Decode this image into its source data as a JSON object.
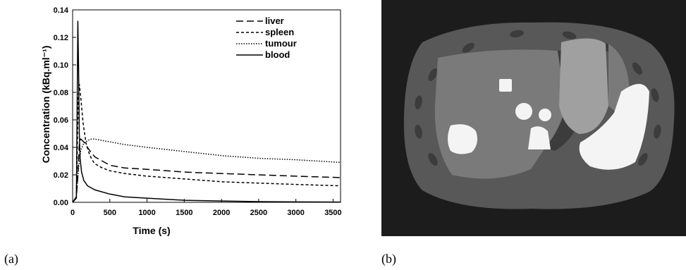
{
  "panel_labels": {
    "a": "(a)",
    "b": "(b)"
  },
  "chart_data": {
    "type": "line",
    "xlabel": "Time (s)",
    "ylabel": "Concentration (kBq.ml⁻¹)",
    "xlim": [
      0,
      3600
    ],
    "ylim": [
      0,
      0.14
    ],
    "xticks": [
      0,
      500,
      1000,
      1500,
      2000,
      2500,
      3000,
      3500
    ],
    "yticks": [
      "0.00",
      "0.02",
      "0.04",
      "0.06",
      "0.08",
      "0.10",
      "0.12",
      "0.14"
    ],
    "legend_position": "top-right",
    "series": [
      {
        "name": "liver",
        "dash": "long-dash",
        "x": [
          0,
          50,
          70,
          90,
          110,
          150,
          200,
          250,
          300,
          400,
          500,
          700,
          1000,
          1500,
          2000,
          2500,
          3000,
          3600
        ],
        "y": [
          0,
          0.004,
          0.02,
          0.042,
          0.046,
          0.044,
          0.04,
          0.036,
          0.033,
          0.03,
          0.027,
          0.025,
          0.024,
          0.022,
          0.021,
          0.02,
          0.019,
          0.018
        ]
      },
      {
        "name": "spleen",
        "dash": "short-dash",
        "x": [
          0,
          50,
          60,
          75,
          90,
          110,
          140,
          180,
          220,
          260,
          300,
          400,
          500,
          700,
          1000,
          1500,
          2000,
          2500,
          3000,
          3600
        ],
        "y": [
          0,
          0.004,
          0.03,
          0.075,
          0.086,
          0.076,
          0.058,
          0.043,
          0.036,
          0.031,
          0.028,
          0.025,
          0.023,
          0.021,
          0.019,
          0.017,
          0.015,
          0.014,
          0.013,
          0.012
        ]
      },
      {
        "name": "tumour",
        "dash": "dotted",
        "x": [
          0,
          50,
          80,
          110,
          150,
          200,
          250,
          300,
          400,
          500,
          700,
          1000,
          1500,
          2000,
          2500,
          3000,
          3600
        ],
        "y": [
          0,
          0.004,
          0.025,
          0.038,
          0.043,
          0.045,
          0.046,
          0.046,
          0.045,
          0.044,
          0.042,
          0.04,
          0.037,
          0.034,
          0.032,
          0.031,
          0.029
        ]
      },
      {
        "name": "blood",
        "dash": "solid",
        "x": [
          0,
          50,
          60,
          70,
          80,
          90,
          100,
          120,
          150,
          200,
          300,
          500,
          700,
          1000,
          1500,
          2000,
          2500,
          3000,
          3600
        ],
        "y": [
          0,
          0.003,
          0.06,
          0.132,
          0.1,
          0.05,
          0.032,
          0.022,
          0.016,
          0.012,
          0.009,
          0.006,
          0.004,
          0.003,
          0.0015,
          0.001,
          0.0005,
          0.0003,
          0.0002
        ]
      }
    ]
  },
  "ct_image": {
    "background": "#1c1c1c",
    "body": "#585858",
    "organ": "#7a7a7a",
    "dark_organ": "#3c3c3c",
    "spleen": "#a0a0a0",
    "bright": "#f4f4f4"
  }
}
